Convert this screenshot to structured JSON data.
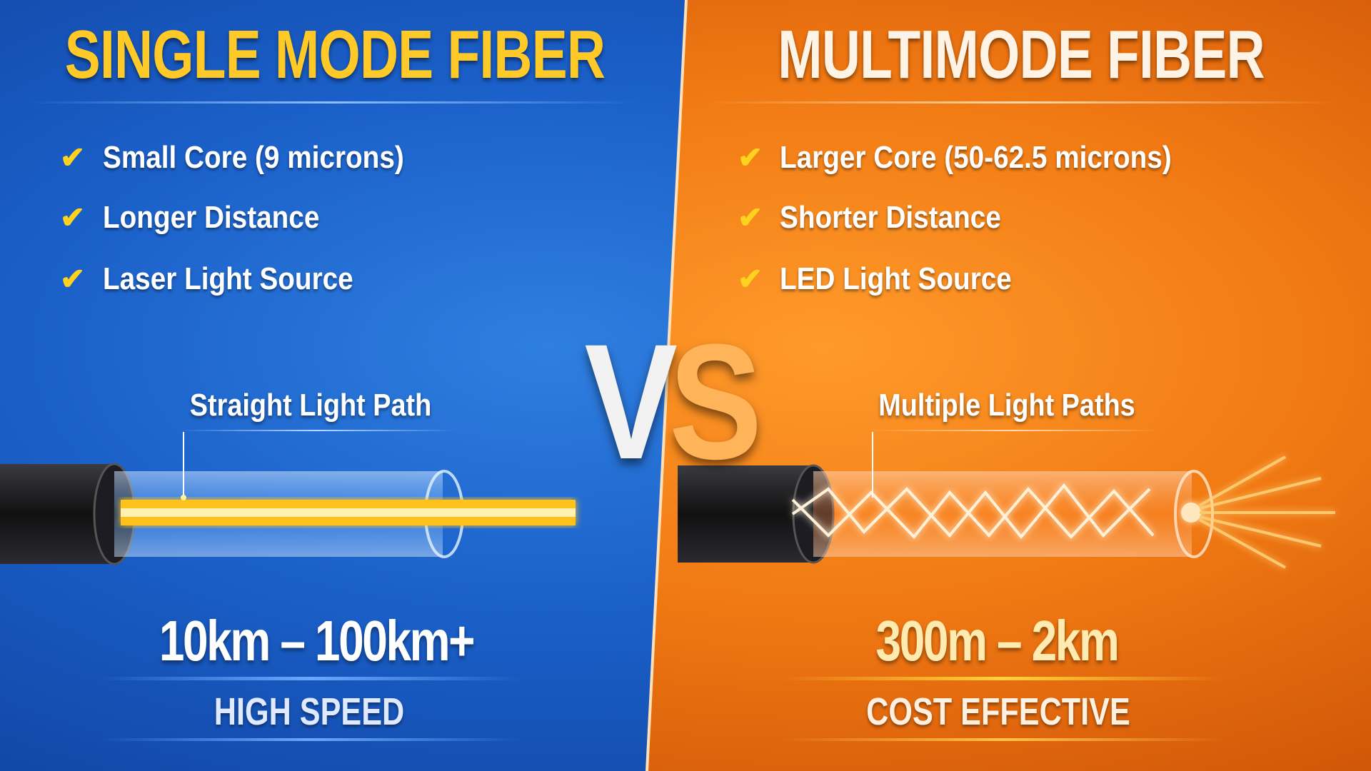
{
  "left": {
    "title": "SINGLE MODE FIBER",
    "bullets": [
      "Small Core (9 microns)",
      "Longer Distance",
      "Laser Light Source"
    ],
    "path_label": "Straight Light Path",
    "range": "10km – 100km+",
    "tag": "HIGH SPEED",
    "accent": "#ffc928",
    "background": "#1a5fc8"
  },
  "vs": {
    "v": "V",
    "s": "S"
  },
  "right": {
    "title": "MULTIMODE FIBER",
    "bullets": [
      "Larger Core (50-62.5 microns)",
      "Shorter Distance",
      "LED Light Source"
    ],
    "path_label": "Multiple Light Paths",
    "range": "300m – 2km",
    "tag": "COST EFFECTIVE",
    "accent": "#ffe9b0",
    "background": "#f07812"
  },
  "check_icon": "checkmark-icon"
}
